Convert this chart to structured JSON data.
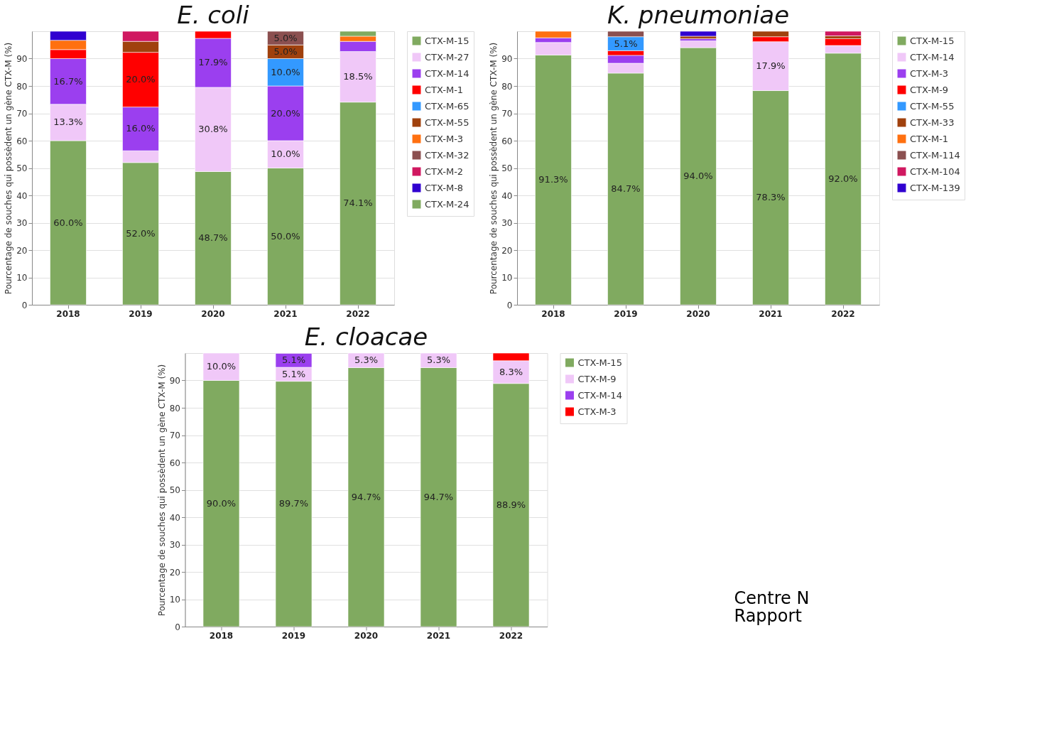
{
  "chart_data": [
    {
      "type": "bar",
      "title": "E. coli",
      "ylabel": "Pourcentage de souches qui possèdent un gène CTX-M (%)",
      "categories": [
        "2018",
        "2019",
        "2020",
        "2021",
        "2022"
      ],
      "stacked": true,
      "ylim": [
        0,
        100
      ],
      "yticks": [
        0,
        10,
        20,
        30,
        40,
        50,
        60,
        70,
        80,
        90
      ],
      "grid": "y",
      "legend": "right",
      "series": [
        {
          "name": "CTX-M-15",
          "color": "#80aa60",
          "values": [
            60.0,
            52.0,
            48.7,
            50.0,
            74.1
          ],
          "value_labels": [
            "60.0%",
            "52.0%",
            "48.7%",
            "50.0%",
            "74.1%"
          ]
        },
        {
          "name": "CTX-M-27",
          "color": "#f0c8f8",
          "values": [
            13.3,
            4.3,
            30.8,
            10.0,
            18.5
          ],
          "value_labels": [
            "13.3%",
            null,
            "30.8%",
            "10.0%",
            "18.5%"
          ]
        },
        {
          "name": "CTX-M-14",
          "color": "#9b3fef",
          "values": [
            16.7,
            16.0,
            17.9,
            20.0,
            3.7
          ],
          "value_labels": [
            "16.7%",
            "16.0%",
            "17.9%",
            "20.0%",
            null
          ]
        },
        {
          "name": "CTX-M-1",
          "color": "#ff0000",
          "values": [
            3.3,
            20.0,
            2.6,
            null,
            null
          ],
          "value_labels": [
            null,
            "20.0%",
            null,
            null,
            null
          ]
        },
        {
          "name": "CTX-M-65",
          "color": "#3399ff",
          "values": [
            null,
            null,
            null,
            10.0,
            null
          ],
          "value_labels": [
            null,
            null,
            null,
            "10.0%",
            null
          ]
        },
        {
          "name": "CTX-M-55",
          "color": "#a0410d",
          "values": [
            null,
            4.0,
            null,
            5.0,
            null
          ],
          "value_labels": [
            null,
            null,
            null,
            "5.0%",
            null
          ]
        },
        {
          "name": "CTX-M-3",
          "color": "#ff7010",
          "values": [
            3.4,
            null,
            null,
            null,
            1.9
          ]
        },
        {
          "name": "CTX-M-32",
          "color": "#8b5050",
          "values": [
            null,
            null,
            null,
            5.0,
            null
          ],
          "value_labels": [
            null,
            null,
            null,
            "5.0%",
            null
          ]
        },
        {
          "name": "CTX-M-2",
          "color": "#d01860",
          "values": [
            null,
            3.7,
            null,
            null,
            null
          ]
        },
        {
          "name": "CTX-M-8",
          "color": "#3000d0",
          "values": [
            3.3,
            null,
            null,
            null,
            null
          ]
        },
        {
          "name": "CTX-M-24",
          "color": "#80aa60",
          "values": [
            null,
            null,
            null,
            null,
            1.8
          ]
        }
      ]
    },
    {
      "type": "bar",
      "title": "K. pneumoniae",
      "ylabel": "Pourcentage de souches qui possèdent un gène CTX-M (%)",
      "categories": [
        "2018",
        "2019",
        "2020",
        "2021",
        "2022"
      ],
      "stacked": true,
      "ylim": [
        0,
        100
      ],
      "yticks": [
        0,
        10,
        20,
        30,
        40,
        50,
        60,
        70,
        80,
        90
      ],
      "grid": "y",
      "legend": "right",
      "series": [
        {
          "name": "CTX-M-15",
          "color": "#80aa60",
          "values": [
            91.3,
            84.7,
            94.0,
            78.3,
            92.0
          ],
          "value_labels": [
            "91.3%",
            "84.7%",
            "94.0%",
            "78.3%",
            "92.0%"
          ]
        },
        {
          "name": "CTX-M-14",
          "color": "#f0c8f8",
          "values": [
            4.6,
            3.6,
            2.5,
            17.9,
            2.8
          ],
          "value_labels": [
            null,
            null,
            null,
            "17.9%",
            null
          ]
        },
        {
          "name": "CTX-M-3",
          "color": "#9b3fef",
          "values": [
            1.7,
            2.9,
            0.8,
            null,
            null
          ]
        },
        {
          "name": "CTX-M-9",
          "color": "#ff0000",
          "values": [
            null,
            1.7,
            null,
            1.8,
            2.5
          ]
        },
        {
          "name": "CTX-M-55",
          "color": "#3399ff",
          "values": [
            null,
            5.1,
            null,
            null,
            null
          ],
          "value_labels": [
            null,
            "5.1%",
            null,
            null,
            null
          ]
        },
        {
          "name": "CTX-M-33",
          "color": "#a0410d",
          "values": [
            null,
            null,
            0.9,
            2.0,
            1.0
          ]
        },
        {
          "name": "CTX-M-1",
          "color": "#ff7010",
          "values": [
            2.4,
            null,
            null,
            null,
            null
          ]
        },
        {
          "name": "CTX-M-114",
          "color": "#8b5050",
          "values": [
            null,
            2.0,
            null,
            null,
            null
          ]
        },
        {
          "name": "CTX-M-104",
          "color": "#d01860",
          "values": [
            null,
            null,
            null,
            null,
            1.7
          ]
        },
        {
          "name": "CTX-M-139",
          "color": "#3000d0",
          "values": [
            null,
            null,
            1.8,
            null,
            null
          ]
        }
      ]
    },
    {
      "type": "bar",
      "title": "E. cloacae",
      "ylabel": "Pourcentage de souches qui possèdent un gène CTX-M (%)",
      "categories": [
        "2018",
        "2019",
        "2020",
        "2021",
        "2022"
      ],
      "stacked": true,
      "ylim": [
        0,
        100
      ],
      "yticks": [
        0,
        10,
        20,
        30,
        40,
        50,
        60,
        70,
        80,
        90
      ],
      "grid": "y",
      "legend": "right",
      "annotations": [
        "Centre N",
        "Rapport"
      ],
      "series": [
        {
          "name": "CTX-M-15",
          "color": "#80aa60",
          "values": [
            90.0,
            89.7,
            94.7,
            94.7,
            88.9
          ],
          "value_labels": [
            "90.0%",
            "89.7%",
            "94.7%",
            "94.7%",
            "88.9%"
          ]
        },
        {
          "name": "CTX-M-9",
          "color": "#f0c8f8",
          "values": [
            10.0,
            5.1,
            5.3,
            5.3,
            8.3
          ],
          "value_labels": [
            "10.0%",
            "5.1%",
            "5.3%",
            "5.3%",
            "8.3%"
          ]
        },
        {
          "name": "CTX-M-14",
          "color": "#9b3fef",
          "values": [
            null,
            5.1,
            null,
            null,
            null
          ],
          "value_labels": [
            null,
            "5.1%",
            null,
            null,
            null
          ]
        },
        {
          "name": "CTX-M-3",
          "color": "#ff0000",
          "values": [
            null,
            null,
            null,
            null,
            2.8
          ]
        }
      ]
    }
  ]
}
